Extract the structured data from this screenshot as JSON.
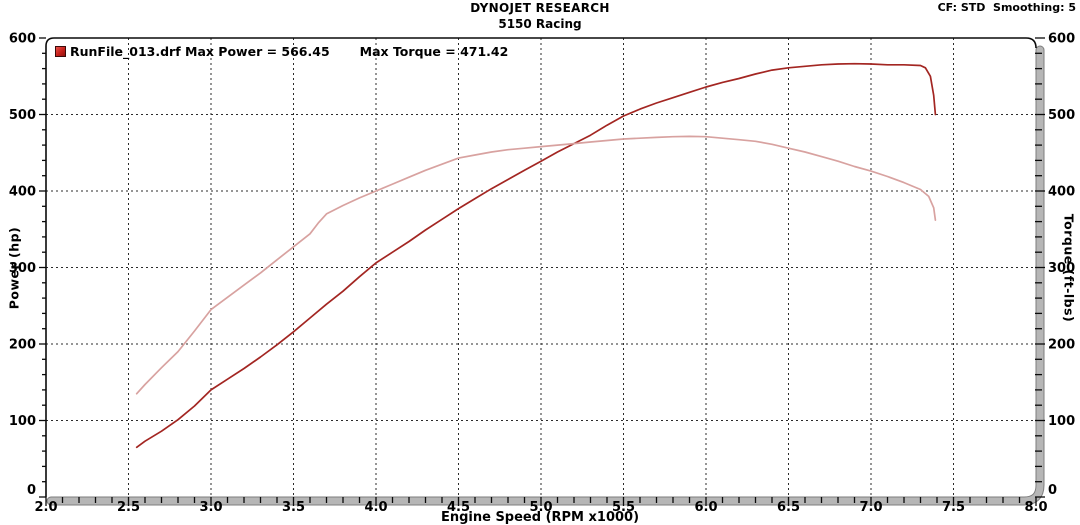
{
  "header": {
    "title": "DYNOJET RESEARCH",
    "subtitle": "5150 Racing",
    "settings": "CF: STD  Smoothing: 5"
  },
  "legend": {
    "swatch_color": "#c81f1a",
    "run_label": "RunFile_013.drf Max Power = 566.45",
    "torque_label": "Max Torque = 471.42"
  },
  "colors": {
    "power_line": "#a32622",
    "torque_line": "#d8a2a0",
    "grid": "#2b2b2b",
    "frame": "#0a0a0a",
    "axis_band_outer": "#7d7d7d",
    "axis_band_inner": "#b6b6b6"
  },
  "chart_data": {
    "type": "line",
    "title": "DYNOJET RESEARCH",
    "subtitle": "5150 Racing",
    "xlabel": "Engine Speed (RPM x1000)",
    "ylabel_left": "Power (hp)",
    "ylabel_right": "Torque (ft-lbs)",
    "xlim": [
      2.0,
      8.0
    ],
    "ylim": [
      0,
      600
    ],
    "x_major_ticks": [
      2.0,
      2.5,
      3.0,
      3.5,
      4.0,
      4.5,
      5.0,
      5.5,
      6.0,
      6.5,
      7.0,
      7.5,
      8.0
    ],
    "x_minor_step": 0.1,
    "y_major_ticks": [
      0,
      100,
      200,
      300,
      400,
      500,
      600
    ],
    "y_minor_step": 20,
    "grid": true,
    "legend_position": "top-left",
    "series": [
      {
        "name": "Power",
        "axis": "left",
        "max_value": 566.45,
        "points": [
          [
            2.55,
            65
          ],
          [
            2.6,
            73
          ],
          [
            2.7,
            86
          ],
          [
            2.8,
            101
          ],
          [
            2.9,
            119
          ],
          [
            3.0,
            140
          ],
          [
            3.1,
            154
          ],
          [
            3.2,
            168
          ],
          [
            3.3,
            183
          ],
          [
            3.4,
            199
          ],
          [
            3.5,
            216
          ],
          [
            3.6,
            234
          ],
          [
            3.7,
            252
          ],
          [
            3.8,
            269
          ],
          [
            3.9,
            288
          ],
          [
            4.0,
            306
          ],
          [
            4.1,
            320
          ],
          [
            4.2,
            334
          ],
          [
            4.3,
            349
          ],
          [
            4.4,
            363
          ],
          [
            4.5,
            377
          ],
          [
            4.6,
            390
          ],
          [
            4.7,
            403
          ],
          [
            4.8,
            415
          ],
          [
            4.9,
            427
          ],
          [
            5.0,
            439
          ],
          [
            5.1,
            451
          ],
          [
            5.2,
            462
          ],
          [
            5.3,
            473
          ],
          [
            5.4,
            486
          ],
          [
            5.5,
            498
          ],
          [
            5.6,
            507
          ],
          [
            5.7,
            515
          ],
          [
            5.8,
            522
          ],
          [
            5.9,
            529
          ],
          [
            6.0,
            536
          ],
          [
            6.1,
            542
          ],
          [
            6.2,
            547
          ],
          [
            6.3,
            553
          ],
          [
            6.4,
            558
          ],
          [
            6.5,
            561
          ],
          [
            6.6,
            563
          ],
          [
            6.7,
            565
          ],
          [
            6.8,
            566
          ],
          [
            6.9,
            566.45
          ],
          [
            7.0,
            566
          ],
          [
            7.1,
            565
          ],
          [
            7.2,
            565
          ],
          [
            7.3,
            564
          ],
          [
            7.33,
            561
          ],
          [
            7.36,
            550
          ],
          [
            7.38,
            525
          ],
          [
            7.39,
            500
          ]
        ]
      },
      {
        "name": "Torque",
        "axis": "right",
        "max_value": 471.42,
        "points": [
          [
            2.55,
            135
          ],
          [
            2.6,
            147
          ],
          [
            2.7,
            169
          ],
          [
            2.8,
            190
          ],
          [
            2.9,
            217
          ],
          [
            3.0,
            245
          ],
          [
            3.1,
            261
          ],
          [
            3.2,
            277
          ],
          [
            3.3,
            293
          ],
          [
            3.4,
            310
          ],
          [
            3.5,
            327
          ],
          [
            3.6,
            344
          ],
          [
            3.65,
            358
          ],
          [
            3.7,
            370
          ],
          [
            3.8,
            381
          ],
          [
            3.9,
            391
          ],
          [
            4.0,
            400
          ],
          [
            4.1,
            409
          ],
          [
            4.2,
            418
          ],
          [
            4.3,
            427
          ],
          [
            4.4,
            435
          ],
          [
            4.5,
            443
          ],
          [
            4.6,
            447
          ],
          [
            4.7,
            451
          ],
          [
            4.8,
            454
          ],
          [
            4.9,
            456
          ],
          [
            5.0,
            458
          ],
          [
            5.1,
            460
          ],
          [
            5.2,
            462
          ],
          [
            5.3,
            464
          ],
          [
            5.4,
            466
          ],
          [
            5.5,
            468
          ],
          [
            5.6,
            469
          ],
          [
            5.7,
            470
          ],
          [
            5.8,
            471
          ],
          [
            5.9,
            471.42
          ],
          [
            6.0,
            471
          ],
          [
            6.1,
            469
          ],
          [
            6.2,
            467
          ],
          [
            6.3,
            465
          ],
          [
            6.4,
            461
          ],
          [
            6.5,
            456
          ],
          [
            6.6,
            451
          ],
          [
            6.7,
            445
          ],
          [
            6.8,
            439
          ],
          [
            6.9,
            432
          ],
          [
            7.0,
            426
          ],
          [
            7.1,
            419
          ],
          [
            7.2,
            411
          ],
          [
            7.3,
            402
          ],
          [
            7.35,
            393
          ],
          [
            7.38,
            378
          ],
          [
            7.39,
            362
          ]
        ]
      }
    ]
  }
}
